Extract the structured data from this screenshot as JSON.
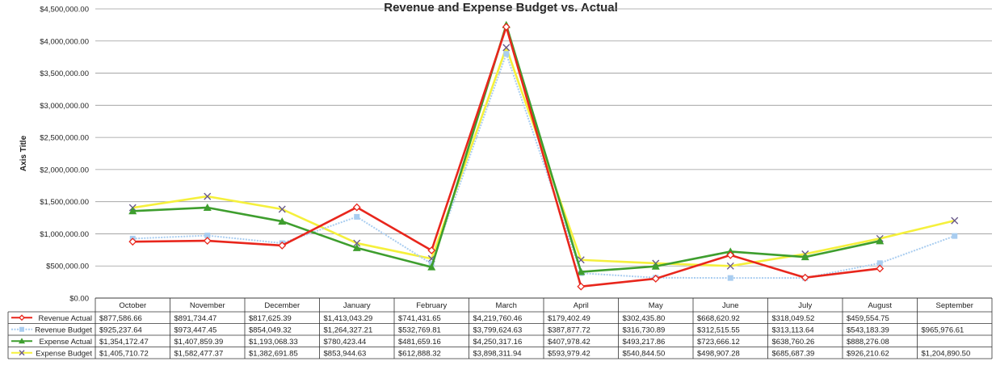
{
  "chart_data": {
    "type": "line",
    "title": "Revenue and Expense Budget vs. Actual",
    "xlabel": "",
    "ylabel": "Axis Title",
    "ylim": [
      0,
      4500000
    ],
    "yticks": [
      "$0.00",
      "$500,000.00",
      "$1,000,000.00",
      "$1,500,000.00",
      "$2,000,000.00",
      "$2,500,000.00",
      "$3,000,000.00",
      "$3,500,000.00",
      "$4,000,000.00",
      "$4,500,000.00"
    ],
    "grid": true,
    "legend": "data-table-left",
    "categories": [
      "October",
      "November",
      "December",
      "January",
      "February",
      "March",
      "April",
      "May",
      "June",
      "July",
      "August",
      "September"
    ],
    "series": [
      {
        "name": "Revenue Actual",
        "color": "#e8261c",
        "marker": "diamond",
        "values": [
          877586.66,
          891734.47,
          817625.39,
          1413043.29,
          741431.65,
          4219760.46,
          179402.49,
          302435.8,
          668620.92,
          318049.52,
          459554.75,
          null
        ],
        "labels": [
          "$877,586.66",
          "$891,734.47",
          "$817,625.39",
          "$1,413,043.29",
          "$741,431.65",
          "$4,219,760.46",
          "$179,402.49",
          "$302,435.80",
          "$668,620.92",
          "$318,049.52",
          "$459,554.75",
          ""
        ]
      },
      {
        "name": "Revenue Budget",
        "color": "#a9cdf0",
        "marker": "square",
        "values": [
          925237.64,
          973447.45,
          854049.32,
          1264327.21,
          532769.81,
          3799624.63,
          387877.72,
          316730.89,
          312515.55,
          313113.64,
          543183.39,
          965976.61
        ],
        "labels": [
          "$925,237.64",
          "$973,447.45",
          "$854,049.32",
          "$1,264,327.21",
          "$532,769.81",
          "$3,799,624.63",
          "$387,877.72",
          "$316,730.89",
          "$312,515.55",
          "$313,113.64",
          "$543,183.39",
          "$965,976.61"
        ]
      },
      {
        "name": "Expense Actual",
        "color": "#3e9e2e",
        "marker": "triangle",
        "values": [
          1354172.47,
          1407859.39,
          1193068.33,
          780423.44,
          481659.16,
          4250317.16,
          407978.42,
          493217.86,
          723666.12,
          638760.26,
          888276.08,
          null
        ],
        "labels": [
          "$1,354,172.47",
          "$1,407,859.39",
          "$1,193,068.33",
          "$780,423.44",
          "$481,659.16",
          "$4,250,317.16",
          "$407,978.42",
          "$493,217.86",
          "$723,666.12",
          "$638,760.26",
          "$888,276.08",
          ""
        ]
      },
      {
        "name": "Expense Budget",
        "color": "#f5f03c",
        "marker": "x",
        "marker_color": "#6a5a8c",
        "values": [
          1405710.72,
          1582477.37,
          1382691.85,
          853944.63,
          612888.32,
          3898311.94,
          593979.42,
          540844.5,
          498907.28,
          685687.39,
          926210.62,
          1204890.5
        ],
        "labels": [
          "$1,405,710.72",
          "$1,582,477.37",
          "$1,382,691.85",
          "$853,944.63",
          "$612,888.32",
          "$3,898,311.94",
          "$593,979.42",
          "$540,844.50",
          "$498,907.28",
          "$685,687.39",
          "$926,210.62",
          "$1,204,890.50"
        ]
      }
    ]
  }
}
